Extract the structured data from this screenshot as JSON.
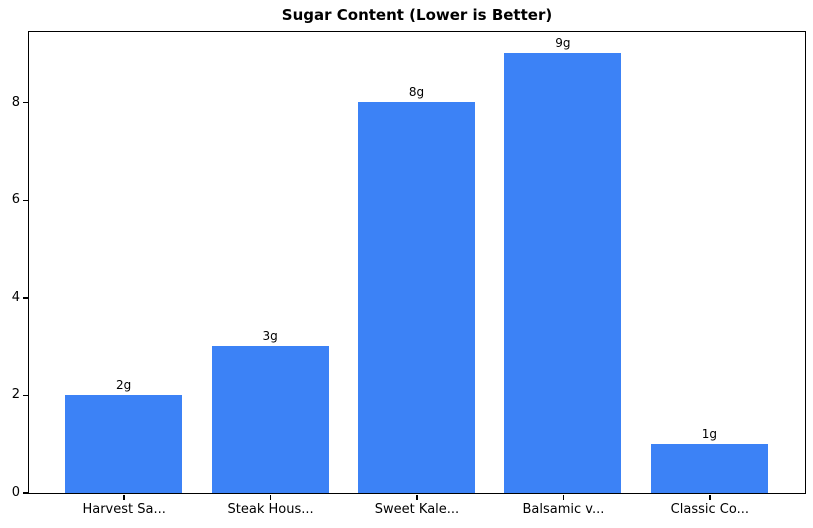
{
  "chart_data": {
    "type": "bar",
    "title": "Sugar Content (Lower is Better)",
    "categories": [
      "Harvest Sa...",
      "Steak Hous...",
      "Sweet Kale...",
      "Balsamic v...",
      "Classic Co..."
    ],
    "values": [
      2,
      3,
      8,
      9,
      1
    ],
    "bar_labels": [
      "2g",
      "3g",
      "8g",
      "9g",
      "1g"
    ],
    "xlabel": "",
    "ylabel": "",
    "ylim": [
      0,
      9.45
    ],
    "yticks": [
      0,
      2,
      4,
      6,
      8
    ],
    "bar_color": "#3C82F6",
    "frame_color": "#000000",
    "background_color": "#FFFFFF",
    "grid": false,
    "legend_position": "none"
  }
}
